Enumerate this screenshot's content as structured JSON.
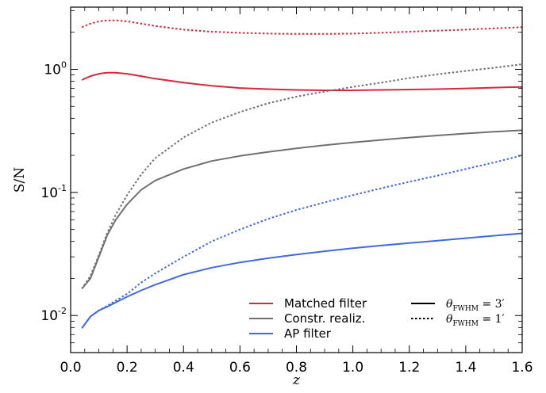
{
  "chart_data": {
    "type": "line",
    "title": "",
    "xlabel": "z",
    "ylabel": "S/N",
    "xlim": [
      0.0,
      1.6
    ],
    "ylim": [
      0.005,
      3.2
    ],
    "yscale": "log",
    "grid": false,
    "legend_placement": "bottom-right",
    "x_ticks": [
      "0.0",
      "0.2",
      "0.4",
      "0.6",
      "0.8",
      "1.0",
      "1.2",
      "1.4",
      "1.6"
    ],
    "y_ticks": [
      {
        "value": 0.01,
        "base": "10",
        "exp": "-2"
      },
      {
        "value": 0.1,
        "base": "10",
        "exp": "-1"
      },
      {
        "value": 1,
        "base": "10",
        "exp": "0"
      }
    ],
    "x": [
      0.04,
      0.07,
      0.1,
      0.13,
      0.16,
      0.2,
      0.25,
      0.3,
      0.4,
      0.5,
      0.6,
      0.7,
      0.8,
      0.9,
      1.0,
      1.1,
      1.2,
      1.3,
      1.4,
      1.5,
      1.6
    ],
    "series": [
      {
        "name": "Matched filter",
        "color": "#d62839",
        "linestyle": "solid",
        "values": [
          0.82,
          0.88,
          0.92,
          0.94,
          0.94,
          0.92,
          0.88,
          0.84,
          0.78,
          0.735,
          0.705,
          0.69,
          0.68,
          0.675,
          0.675,
          0.68,
          0.685,
          0.69,
          0.7,
          0.71,
          0.72
        ]
      },
      {
        "name": "Matched filter",
        "color": "#d62839",
        "linestyle": "dotted",
        "values": [
          2.2,
          2.35,
          2.45,
          2.5,
          2.5,
          2.45,
          2.35,
          2.25,
          2.1,
          2.02,
          1.98,
          1.95,
          1.94,
          1.94,
          1.95,
          1.98,
          2.02,
          2.06,
          2.1,
          2.15,
          2.2
        ]
      },
      {
        "name": "Constr. realiz.",
        "color": "#707070",
        "linestyle": "solid",
        "values": [
          0.0165,
          0.02,
          0.03,
          0.045,
          0.06,
          0.08,
          0.105,
          0.125,
          0.155,
          0.18,
          0.198,
          0.213,
          0.228,
          0.242,
          0.255,
          0.267,
          0.279,
          0.29,
          0.301,
          0.311,
          0.32
        ]
      },
      {
        "name": "Constr. realiz.",
        "color": "#707070",
        "linestyle": "dotted",
        "values": [
          0.0165,
          0.021,
          0.031,
          0.047,
          0.066,
          0.095,
          0.14,
          0.19,
          0.28,
          0.37,
          0.45,
          0.53,
          0.6,
          0.66,
          0.72,
          0.78,
          0.85,
          0.91,
          0.97,
          1.03,
          1.1
        ]
      },
      {
        "name": "AP filter",
        "color": "#4169e1",
        "linestyle": "solid",
        "values": [
          0.0079,
          0.0098,
          0.011,
          0.0118,
          0.0128,
          0.0142,
          0.016,
          0.0178,
          0.0215,
          0.0245,
          0.027,
          0.0292,
          0.0313,
          0.0333,
          0.0352,
          0.037,
          0.0388,
          0.0406,
          0.0425,
          0.0445,
          0.0465
        ]
      },
      {
        "name": "AP filter",
        "color": "#4169e1",
        "linestyle": "dotted",
        "values": [
          0.0079,
          0.0098,
          0.011,
          0.012,
          0.0132,
          0.015,
          0.0185,
          0.022,
          0.03,
          0.04,
          0.05,
          0.061,
          0.072,
          0.083,
          0.095,
          0.108,
          0.122,
          0.137,
          0.155,
          0.175,
          0.2
        ]
      }
    ],
    "legend": {
      "entries": [
        {
          "label": "Matched filter",
          "color": "#d62839"
        },
        {
          "label": "Constr. realiz.",
          "color": "#707070"
        },
        {
          "label": "AP filter",
          "color": "#4169e1"
        }
      ],
      "style_entries": [
        {
          "theta": "θ",
          "sub": "FWHM",
          "eq": " = 3′",
          "linestyle": "solid"
        },
        {
          "theta": "θ",
          "sub": "FWHM",
          "eq": " = 1′",
          "linestyle": "dotted"
        }
      ]
    }
  }
}
